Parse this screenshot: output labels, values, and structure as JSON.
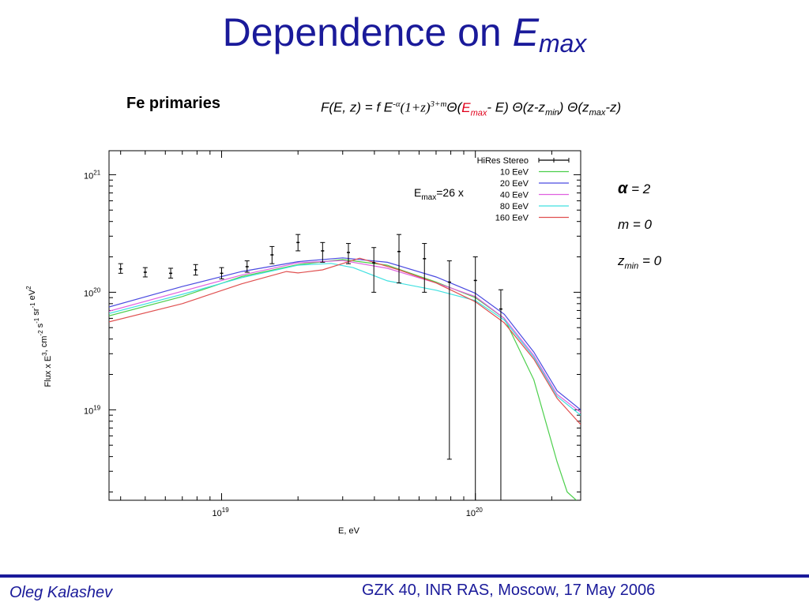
{
  "slide": {
    "title_main": "Dependence on ",
    "title_var": "E",
    "title_sub": "max",
    "subtitle": "Fe primaries",
    "formula": {
      "p1": "F(E, z) = f E",
      "sup1": "-α",
      "p2": "(1+z)",
      "sup2": "3+m",
      "p3": "Θ(",
      "emax_var": "E",
      "emax_sub": "max",
      "p4": "- E) Θ(z-z",
      "zmin_sub": "min",
      "p5": ") Θ(z",
      "zmax_sub": "max",
      "p6": "-z)"
    },
    "params": {
      "alpha_sym": "α",
      "alpha_val": " = 2",
      "m_line": "m = 0",
      "zmin_var": "z",
      "zmin_sub": "min",
      "zmin_val": " = 0"
    },
    "footer": {
      "author": "Oleg Kalashev",
      "event": "GZK 40, INR RAS, Moscow, 17 May 2006"
    },
    "colors": {
      "title": "#1a1a9a",
      "accent_red": "#e0001a"
    }
  },
  "chart_data": {
    "type": "line",
    "xlabel": "E, eV",
    "ylabel": "Flux x E^3, cm^-2 s^-1 sr^-1 eV^2",
    "x_scale": "log",
    "y_scale": "log",
    "xlim": [
      3.6e+18,
      2.6e+20
    ],
    "ylim": [
      1.7e+18,
      1.6e+21
    ],
    "x_ticks": [
      {
        "value": 1e+19,
        "base": "10",
        "exp": "19"
      },
      {
        "value": 1e+20,
        "base": "10",
        "exp": "20"
      }
    ],
    "y_ticks": [
      {
        "value": 1e+19,
        "base": "10",
        "exp": "19"
      },
      {
        "value": 1e+20,
        "base": "10",
        "exp": "20"
      },
      {
        "value": 1e+21,
        "base": "10",
        "exp": "21"
      }
    ],
    "annotation": {
      "var": "E",
      "sub": "max",
      "text": "=26 x"
    },
    "legend_position": "top-right",
    "data_series": {
      "name": "HiRes Stereo",
      "points": [
        {
          "x": 4e+18,
          "y": 1.58e+20,
          "ylo": 1.45e+20,
          "yhi": 1.75e+20
        },
        {
          "x": 5e+18,
          "y": 1.48e+20,
          "ylo": 1.35e+20,
          "yhi": 1.62e+20
        },
        {
          "x": 6.3e+18,
          "y": 1.45e+20,
          "ylo": 1.32e+20,
          "yhi": 1.6e+20
        },
        {
          "x": 7.9e+18,
          "y": 1.55e+20,
          "ylo": 1.4e+20,
          "yhi": 1.72e+20
        },
        {
          "x": 1e+19,
          "y": 1.45e+20,
          "ylo": 1.3e+20,
          "yhi": 1.62e+20
        },
        {
          "x": 1.26e+19,
          "y": 1.65e+20,
          "ylo": 1.48e+20,
          "yhi": 1.85e+20
        },
        {
          "x": 1.58e+19,
          "y": 2.08e+20,
          "ylo": 1.75e+20,
          "yhi": 2.45e+20
        },
        {
          "x": 2e+19,
          "y": 2.65e+20,
          "ylo": 2.25e+20,
          "yhi": 3.1e+20
        },
        {
          "x": 2.5e+19,
          "y": 2.25e+20,
          "ylo": 1.8e+20,
          "yhi": 2.65e+20
        },
        {
          "x": 3.16e+19,
          "y": 2.18e+20,
          "ylo": 1.75e+20,
          "yhi": 2.6e+20
        },
        {
          "x": 3.98e+19,
          "y": 1.78e+20,
          "ylo": 1e+20,
          "yhi": 2.4e+20
        },
        {
          "x": 5e+19,
          "y": 2.22e+20,
          "ylo": 1.2e+20,
          "yhi": 3.1e+20
        },
        {
          "x": 6.3e+19,
          "y": 1.93e+20,
          "ylo": 1e+20,
          "yhi": 2.6e+20
        },
        {
          "x": 7.9e+19,
          "y": 1.22e+20,
          "ylo": 3.8e+18,
          "yhi": 1.85e+20
        },
        {
          "x": 1e+20,
          "y": 1.26e+20,
          "ylo": 1.7e+18,
          "yhi": 2e+20
        },
        {
          "x": 1.26e+20,
          "y": 7.2e+19,
          "ylo": 1.7e+18,
          "yhi": 1.05e+20
        }
      ]
    },
    "series": [
      {
        "name": "10 EeV",
        "color": "#4ccf4c",
        "x": [
          3.6e+18,
          7e+18,
          1.2e+19,
          2e+19,
          3e+19,
          4.5e+19,
          7e+19,
          1e+20,
          1.3e+20,
          1.7e+20,
          2.1e+20,
          2.3e+20,
          2.5e+20
        ],
        "y": [
          6.3e+19,
          9.2e+19,
          1.36e+20,
          1.72e+20,
          1.9e+20,
          1.7e+20,
          1.22e+20,
          9e+19,
          6e+19,
          1.8e+19,
          3.6e+18,
          2e+18,
          1.7e+18
        ]
      },
      {
        "name": "20 EeV",
        "color": "#4a4ae0",
        "x": [
          3.6e+18,
          7e+18,
          1.2e+19,
          2e+19,
          3e+19,
          4.5e+19,
          7e+19,
          1e+20,
          1.3e+20,
          1.7e+20,
          2.1e+20,
          2.6e+20
        ],
        "y": [
          7.5e+19,
          1.12e+20,
          1.5e+20,
          1.82e+20,
          1.96e+20,
          1.8e+20,
          1.35e+20,
          9.8e+19,
          6.5e+19,
          3.1e+19,
          1.45e+19,
          1e+19
        ]
      },
      {
        "name": "40 EeV",
        "color": "#e060e0",
        "x": [
          3.6e+18,
          7e+18,
          1.2e+19,
          2e+19,
          3e+19,
          4.5e+19,
          7e+19,
          1e+20,
          1.3e+20,
          1.7e+20,
          2.1e+20,
          2.6e+20
        ],
        "y": [
          6.9e+19,
          1.02e+20,
          1.4e+20,
          1.78e+20,
          1.86e+20,
          1.6e+20,
          1.2e+20,
          9.2e+19,
          6e+19,
          2.9e+19,
          1.35e+19,
          9.5e+18
        ]
      },
      {
        "name": "80 EeV",
        "color": "#40e0e0",
        "x": [
          3.6e+18,
          7e+18,
          1.2e+19,
          2e+19,
          2.7e+19,
          3.3e+19,
          4.5e+19,
          7e+19,
          1e+20,
          1.3e+20,
          1.7e+20,
          2.1e+20,
          2.6e+20
        ],
        "y": [
          6.6e+19,
          9.6e+19,
          1.33e+20,
          1.7e+20,
          1.76e+20,
          1.62e+20,
          1.25e+20,
          1.04e+20,
          8.5e+19,
          5.8e+19,
          2.8e+19,
          1.3e+19,
          9e+18
        ]
      },
      {
        "name": "160 EeV",
        "color": "#e05050",
        "x": [
          3.6e+18,
          7e+18,
          1.2e+19,
          1.8e+19,
          2e+19,
          2.5e+19,
          3.5e+19,
          5e+19,
          7e+19,
          1e+20,
          1.3e+20,
          1.7e+20,
          2.1e+20,
          2.6e+20
        ],
        "y": [
          5.6e+19,
          8e+19,
          1.18e+20,
          1.5e+20,
          1.46e+20,
          1.55e+20,
          1.95e+20,
          1.55e+20,
          1.2e+20,
          8.3e+19,
          5.5e+19,
          2.7e+19,
          1.25e+19,
          7.5e+18
        ]
      }
    ]
  }
}
